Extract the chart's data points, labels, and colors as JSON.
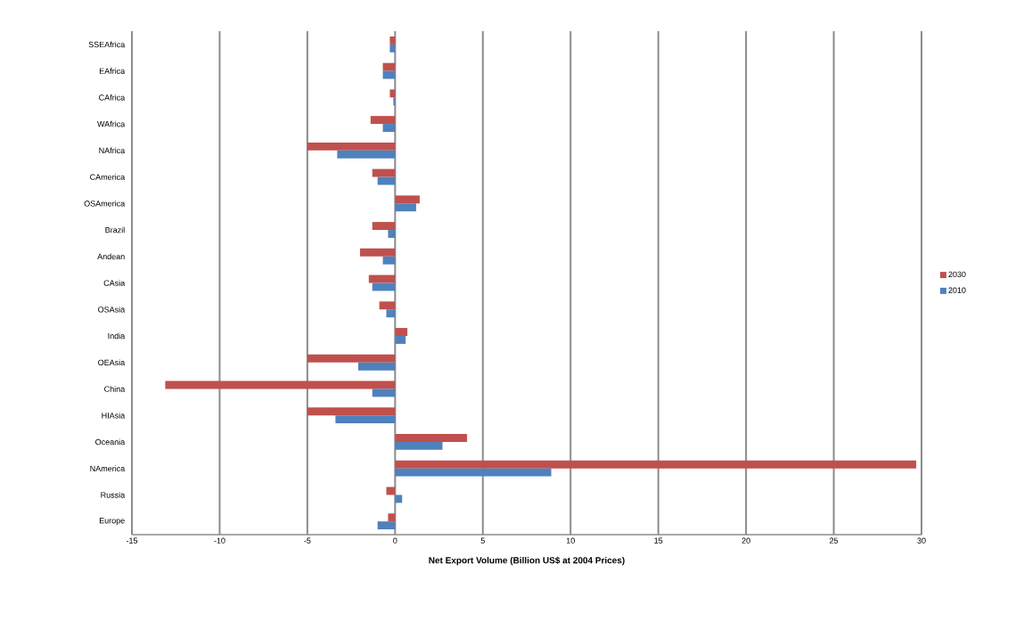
{
  "chart_data": {
    "type": "bar",
    "orientation": "horizontal",
    "xlabel": "Net Export Volume  (Billion  US$ at  2004 Prices)",
    "categories": [
      "SSEAfrica",
      "EAfrica",
      "CAfrica",
      "WAfrica",
      "NAfrica",
      "CAmerica",
      "OSAmerica",
      "Brazil",
      "Andean",
      "CAsia",
      "OSAsia",
      "India",
      "OEAsia",
      "China",
      "HIAsia",
      "Oceania",
      "NAmerica",
      "Russia",
      "Europe"
    ],
    "series": [
      {
        "name": "2030",
        "color": "#c0504d",
        "values": [
          -0.3,
          -0.7,
          -0.3,
          -1.4,
          -5.0,
          -1.3,
          1.4,
          -1.3,
          -2.0,
          -1.5,
          -0.9,
          0.7,
          -5.0,
          -13.1,
          -5.0,
          4.1,
          29.7,
          -0.5,
          -0.4
        ]
      },
      {
        "name": "2010",
        "color": "#4f81bd",
        "values": [
          -0.3,
          -0.7,
          -0.1,
          -0.7,
          -3.3,
          -1.0,
          1.2,
          -0.4,
          -0.7,
          -1.3,
          -0.5,
          0.6,
          -2.1,
          -1.3,
          -3.4,
          2.7,
          8.9,
          0.4,
          -1.0
        ]
      }
    ],
    "xlim": [
      -15,
      30
    ],
    "xticks": [
      -15,
      -10,
      -5,
      0,
      5,
      10,
      15,
      20,
      25,
      30
    ],
    "grid": "x",
    "legend": "right"
  }
}
